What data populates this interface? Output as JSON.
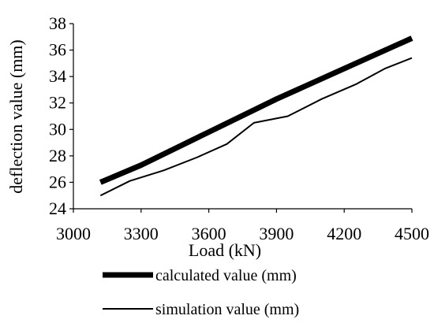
{
  "chart_data": {
    "type": "line",
    "xlabel": "Load (kN)",
    "ylabel": "deflection value (mm)",
    "xlim": [
      3000,
      4500
    ],
    "ylim": [
      24,
      38
    ],
    "x_ticks": [
      "3000",
      "3300",
      "3600",
      "3900",
      "4200",
      "4500"
    ],
    "y_ticks": [
      "24",
      "26",
      "28",
      "30",
      "32",
      "34",
      "36",
      "38"
    ],
    "grid": false,
    "legend_position": "bottom",
    "series": [
      {
        "name": "calculated value (mm)",
        "color": "#000000",
        "line_style": "thick",
        "points": [
          {
            "x": 3120,
            "y": 26.0
          },
          {
            "x": 3300,
            "y": 27.3
          },
          {
            "x": 3600,
            "y": 29.8
          },
          {
            "x": 3900,
            "y": 32.3
          },
          {
            "x": 4200,
            "y": 34.6
          },
          {
            "x": 4500,
            "y": 36.9
          }
        ]
      },
      {
        "name": "simulation value (mm)",
        "color": "#000000",
        "line_style": "thin",
        "points": [
          {
            "x": 3120,
            "y": 25.0
          },
          {
            "x": 3250,
            "y": 26.1
          },
          {
            "x": 3400,
            "y": 26.9
          },
          {
            "x": 3550,
            "y": 27.9
          },
          {
            "x": 3680,
            "y": 28.9
          },
          {
            "x": 3800,
            "y": 30.5
          },
          {
            "x": 3950,
            "y": 31.0
          },
          {
            "x": 4100,
            "y": 32.3
          },
          {
            "x": 4250,
            "y": 33.4
          },
          {
            "x": 4380,
            "y": 34.6
          },
          {
            "x": 4500,
            "y": 35.4
          }
        ]
      }
    ]
  }
}
